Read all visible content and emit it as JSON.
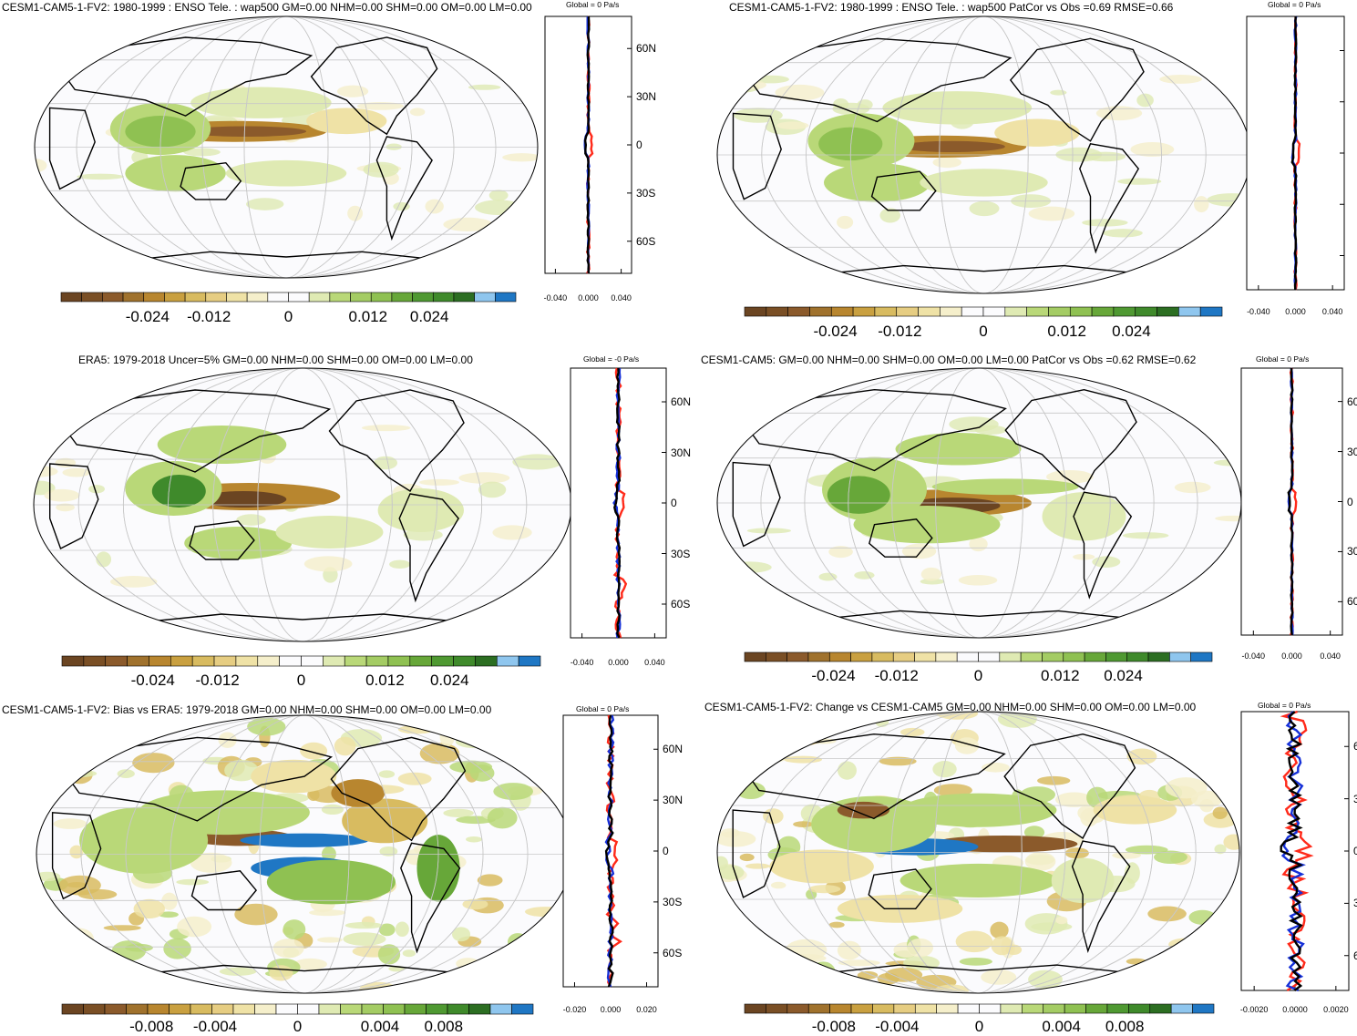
{
  "colors": {
    "brown_dark": "#6b4522",
    "brown": "#8b5a2b",
    "tan": "#b8862f",
    "tan_light": "#d8bb60",
    "cream": "#efe2a6",
    "cream_light": "#f5efcb",
    "white": "#fbfbfd",
    "green_pale": "#dfeab3",
    "green_light": "#b9d878",
    "green": "#8fc152",
    "green_mid": "#67a739",
    "green_dark": "#3f8a2b",
    "green_darker": "#2c6e22",
    "blue_light": "#8fc6ee",
    "blue": "#1f77c4",
    "line_red": "#ff2a1a",
    "line_blue": "#1530d8",
    "line_black": "#000000"
  },
  "panels": [
    {
      "id": "p1",
      "title": "CESM1-CAM5-1-FV2: 1980-1999 : ENSO Tele. : wap500 GM=0.00 NHM=0.00 SHM=0.00 OM=0.00 LM=0.00",
      "profile_title": "Global = 0 Pa/s",
      "cbar_labels": [
        "-0.024",
        "-0.012",
        "0",
        "0.012",
        "0.024"
      ],
      "profile_xticks": [
        "-0.040",
        "0.000",
        "0.040"
      ],
      "lat_labels": [
        "60N",
        "30N",
        "0",
        "30S",
        "60S"
      ]
    },
    {
      "id": "p2",
      "title": "CESM1-CAM5-1-FV2: 1980-1999 : ENSO Tele. : wap500 PatCor vs Obs =0.69 RMSE=0.66",
      "profile_title": "Global = 0 Pa/s",
      "cbar_labels": [
        "-0.024",
        "-0.012",
        "0",
        "0.012",
        "0.024"
      ],
      "profile_xticks": [
        "-0.040",
        "0.000",
        "0.040"
      ],
      "lat_labels": []
    },
    {
      "id": "p3",
      "title": "ERA5: 1979-2018 Uncer=5% GM=0.00 NHM=0.00 SHM=0.00 OM=0.00 LM=0.00",
      "profile_title": "Global = -0 Pa/s",
      "cbar_labels": [
        "-0.024",
        "-0.012",
        "0",
        "0.012",
        "0.024"
      ],
      "profile_xticks": [
        "-0.040",
        "0.000",
        "0.040"
      ],
      "lat_labels": [
        "60N",
        "30N",
        "0",
        "30S",
        "60S"
      ]
    },
    {
      "id": "p4",
      "title": "CESM1-CAM5: GM=0.00 NHM=0.00 SHM=0.00 OM=0.00 LM=0.00 PatCor vs Obs =0.62 RMSE=0.62",
      "profile_title": "Global = 0 Pa/s",
      "cbar_labels": [
        "-0.024",
        "-0.012",
        "0",
        "0.012",
        "0.024"
      ],
      "profile_xticks": [
        "-0.040",
        "0.000",
        "0.040"
      ],
      "lat_labels": [
        "60",
        "30",
        "0",
        "30",
        "60"
      ]
    },
    {
      "id": "p5",
      "title": "CESM1-CAM5-1-FV2: Bias vs ERA5: 1979-2018 GM=0.00 NHM=0.00 SHM=0.00 OM=0.00 LM=0.00",
      "profile_title": "Global = 0 Pa/s",
      "cbar_labels": [
        "-0.008",
        "-0.004",
        "0",
        "0.004",
        "0.008"
      ],
      "profile_xticks": [
        "-0.020",
        "0.000",
        "0.020"
      ],
      "lat_labels": [
        "60N",
        "30N",
        "0",
        "30S",
        "60S"
      ]
    },
    {
      "id": "p6",
      "title": "CESM1-CAM5-1-FV2: Change vs CESM1-CAM5 GM=0.00 NHM=0.00 SHM=0.00 OM=0.00 LM=0.00",
      "profile_title": "Global = 0 Pa/s",
      "cbar_labels": [
        "-0.008",
        "-0.004",
        "0",
        "0.004",
        "0.008"
      ],
      "profile_xticks": [
        "-0.0020",
        "0.0000",
        "0.0020"
      ],
      "lat_labels": [
        "6",
        "3",
        "0",
        "3",
        "6"
      ]
    }
  ],
  "chart_data": {
    "type": "heatmap",
    "variable": "wap500",
    "unit": "Pa/s",
    "colorbar_levels_main": [
      -0.03,
      -0.027,
      -0.024,
      -0.021,
      -0.018,
      -0.015,
      -0.012,
      -0.009,
      -0.006,
      -0.003,
      0,
      0.003,
      0.006,
      0.009,
      0.012,
      0.015,
      0.018,
      0.021,
      0.024,
      0.027,
      0.03
    ],
    "colorbar_levels_diff": [
      -0.01,
      -0.009,
      -0.008,
      -0.007,
      -0.006,
      -0.005,
      -0.004,
      -0.003,
      -0.002,
      -0.001,
      0,
      0.001,
      0.002,
      0.003,
      0.004,
      0.005,
      0.006,
      0.007,
      0.008,
      0.009,
      0.01
    ],
    "profile_lat_range": [
      -80,
      80
    ],
    "profile_lat_ticks": [
      60,
      30,
      0,
      -30,
      -60
    ],
    "profile_series": [
      "Ocean (blue)",
      "Land (red)",
      "Global (black)"
    ]
  }
}
